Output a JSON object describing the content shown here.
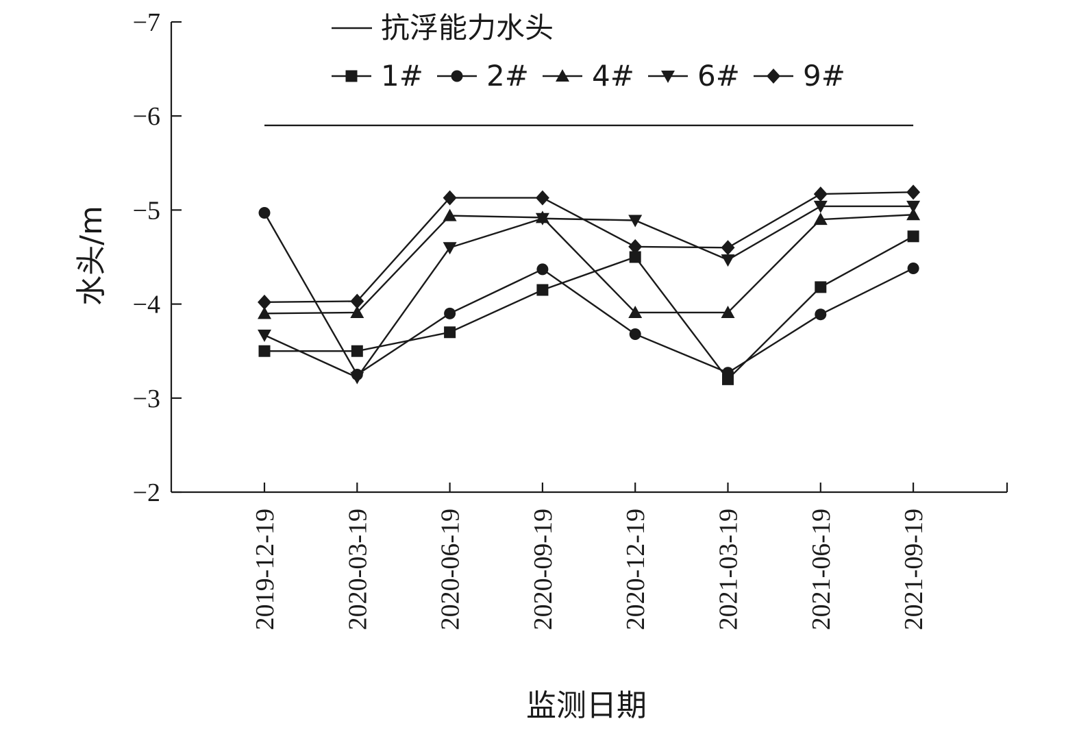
{
  "chart_data": {
    "type": "line",
    "xlabel": "监测日期",
    "ylabel": "水头/m",
    "ylim": [
      -2,
      -7
    ],
    "y_ticks": [
      "−7",
      "−6",
      "−5",
      "−4",
      "−3",
      "−2"
    ],
    "y_tick_values": [
      -7,
      -6,
      -5,
      -4,
      -3,
      -2
    ],
    "categories": [
      "2019-12-19",
      "2020-03-19",
      "2020-06-19",
      "2020-09-19",
      "2020-12-19",
      "2021-03-19",
      "2021-06-19",
      "2021-09-19"
    ],
    "reference_line": {
      "name": "抗浮能力水头",
      "value": -5.9
    },
    "series": [
      {
        "name": "1#",
        "marker": "square",
        "values": [
          -3.5,
          -3.5,
          -3.7,
          -4.15,
          -4.5,
          -3.2,
          -4.18,
          -4.72
        ]
      },
      {
        "name": "2#",
        "marker": "circle",
        "values": [
          -4.97,
          -3.25,
          -3.9,
          -4.37,
          -3.68,
          -3.27,
          -3.89,
          -4.38
        ]
      },
      {
        "name": "4#",
        "marker": "triangle-up",
        "values": [
          -3.9,
          -3.91,
          -4.94,
          -4.92,
          -3.91,
          -3.91,
          -4.9,
          -4.95
        ]
      },
      {
        "name": "6#",
        "marker": "triangle-down",
        "values": [
          -3.67,
          -3.22,
          -4.6,
          -4.91,
          -4.89,
          -4.47,
          -5.04,
          -5.04
        ]
      },
      {
        "name": "9#",
        "marker": "diamond",
        "values": [
          -4.02,
          -4.03,
          -5.13,
          -5.13,
          -4.61,
          -4.6,
          -5.17,
          -5.19
        ]
      }
    ],
    "legend_position": "top-center",
    "grid": false,
    "line_color": "#1a1a1a"
  }
}
